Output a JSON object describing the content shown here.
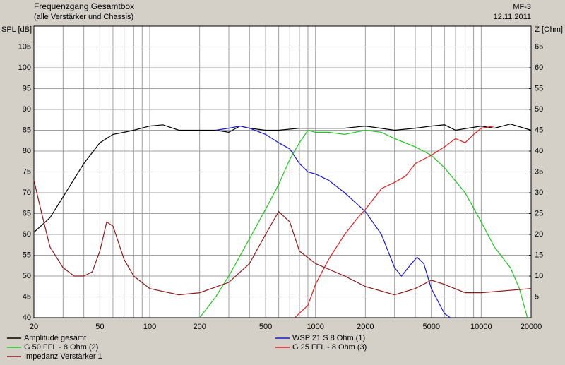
{
  "chart_data": {
    "type": "line",
    "title": "Frequenzgang Gesamtbox",
    "subtitle": "(alle Verstärker und Chassis)",
    "project": "MF-3",
    "date": "12.11.2011",
    "y_label": "SPL [dB]",
    "y2_label": "Z [Ohm]",
    "x_scale": "log",
    "xlim": [
      20,
      20000
    ],
    "xticks": [
      20,
      50,
      100,
      200,
      500,
      1000,
      2000,
      5000,
      10000,
      20000
    ],
    "x_gridlines": [
      20,
      30,
      40,
      50,
      60,
      70,
      80,
      90,
      100,
      200,
      300,
      400,
      500,
      600,
      700,
      800,
      900,
      1000,
      2000,
      3000,
      4000,
      5000,
      6000,
      7000,
      8000,
      9000,
      10000,
      20000
    ],
    "ylim": [
      40,
      110
    ],
    "yticks": [
      40,
      45,
      50,
      55,
      60,
      65,
      70,
      75,
      80,
      85,
      90,
      95,
      100,
      105
    ],
    "y2lim": [
      0,
      70
    ],
    "y2ticks": [
      5,
      10,
      15,
      20,
      25,
      30,
      35,
      40,
      45,
      50,
      55,
      60,
      65
    ],
    "grid": true,
    "legend": "bottom",
    "series": [
      {
        "name": "Amplitude gesamt",
        "color": "#000000",
        "x": [
          20,
          25,
          30,
          40,
          50,
          60,
          70,
          80,
          100,
          120,
          150,
          200,
          250,
          300,
          350,
          400,
          500,
          600,
          800,
          1000,
          1500,
          2000,
          3000,
          4000,
          5000,
          6000,
          7000,
          10000,
          12000,
          15000,
          20000
        ],
        "values": [
          60.5,
          64,
          69,
          77,
          82,
          84,
          84.5,
          85,
          86,
          86.3,
          85,
          85,
          85,
          84.5,
          86,
          85.5,
          85,
          85,
          85.5,
          85.5,
          85.5,
          86,
          85,
          85.5,
          86,
          86.3,
          85,
          86,
          85.5,
          86.5,
          85
        ]
      },
      {
        "name": "WSP 21 S 8 Ohm (1)",
        "color": "#1a1ad0",
        "x": [
          250,
          300,
          350,
          400,
          500,
          600,
          700,
          800,
          900,
          1000,
          1200,
          1500,
          2000,
          2500,
          3000,
          3300,
          3800,
          4100,
          4500,
          5000,
          6000,
          6500
        ],
        "values": [
          85,
          85.5,
          86,
          85.5,
          84,
          82,
          80.5,
          77,
          75,
          74.5,
          73,
          70,
          65.5,
          60,
          52,
          50,
          53,
          54.5,
          53,
          47,
          41,
          40
        ]
      },
      {
        "name": "G 50 FFL - 8 Ohm (2)",
        "color": "#22c422",
        "x": [
          200,
          250,
          300,
          400,
          500,
          600,
          700,
          800,
          900,
          1000,
          1200,
          1500,
          2000,
          2500,
          3000,
          4000,
          5000,
          6000,
          8000,
          10000,
          12000,
          15000,
          17000,
          19000
        ],
        "values": [
          40,
          45,
          50,
          59,
          66,
          72,
          78,
          82,
          85,
          84.5,
          84.5,
          84,
          85,
          84.5,
          83,
          81,
          79,
          76,
          70,
          63,
          57,
          52,
          47,
          40
        ]
      },
      {
        "name": "G 25 FFL - 8 Ohm (3)",
        "color": "#e02020",
        "x": [
          750,
          900,
          1000,
          1200,
          1500,
          1800,
          2000,
          2500,
          3000,
          3500,
          4000,
          5000,
          6000,
          7000,
          8000,
          9000,
          10000,
          12000
        ],
        "values": [
          40,
          43,
          48,
          54,
          60,
          64,
          66,
          71,
          72.5,
          74,
          77,
          79,
          81,
          83,
          82,
          84,
          85.5,
          86
        ]
      },
      {
        "name": "Impedanz Verstärker 1",
        "color": "#8b1a1a",
        "axis": "y2",
        "x": [
          20,
          22,
          25,
          30,
          35,
          40,
          45,
          50,
          55,
          60,
          70,
          80,
          100,
          150,
          200,
          300,
          400,
          500,
          600,
          700,
          800,
          1000,
          1500,
          2000,
          3000,
          4000,
          5000,
          6000,
          8000,
          10000,
          20000
        ],
        "values": [
          33,
          26,
          17,
          12,
          10,
          10,
          11,
          16,
          23,
          22,
          14,
          10,
          7,
          5.5,
          6,
          8.5,
          13,
          20,
          25.5,
          23,
          16,
          13,
          10,
          7.5,
          5.5,
          7,
          9,
          8,
          6,
          6,
          7
        ]
      }
    ]
  }
}
